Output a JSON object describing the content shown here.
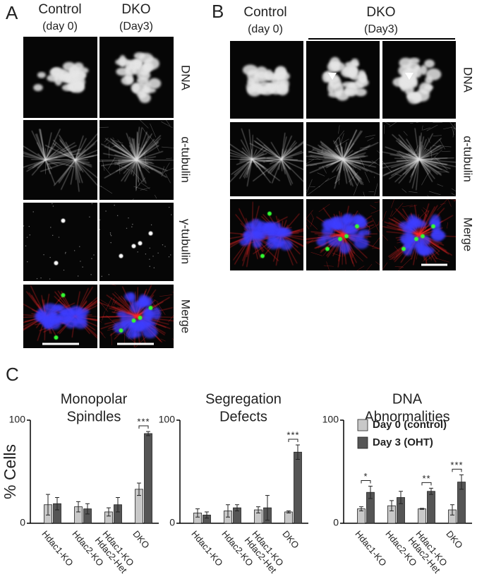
{
  "panels": {
    "A": {
      "letter": "A",
      "columns": [
        [
          "Control",
          "(day 0)"
        ],
        [
          "DKO",
          "(Day3)"
        ]
      ],
      "rows": [
        "DNA",
        "α-tubulin",
        "γ-tubulin",
        "Merge"
      ]
    },
    "B": {
      "letter": "B",
      "columns": [
        [
          "Control",
          "(day 0)"
        ],
        [
          "DKO",
          "(Day3)"
        ]
      ],
      "rows": [
        "DNA",
        "α-tubulin",
        "Merge"
      ]
    },
    "C": {
      "letter": "C"
    }
  },
  "chart_data": [
    {
      "type": "bar",
      "title": [
        "Monopolar",
        "Spindles"
      ],
      "y_label": "% Cells",
      "categories": [
        "Hdac1-KO",
        "Hdac2-KO",
        "Hdac1-KO\nHdac2-Het",
        "DKO"
      ],
      "series": [
        {
          "name": "Day 0 (control)",
          "color": "#c8c8c8",
          "values": [
            18,
            16,
            11,
            33
          ],
          "errors": [
            10,
            5,
            4,
            6
          ]
        },
        {
          "name": "Day 3 (OHT)",
          "color": "#555555",
          "values": [
            19,
            14,
            18,
            87
          ],
          "errors": [
            6,
            5,
            7,
            2
          ]
        }
      ],
      "significance": [
        null,
        null,
        null,
        "***"
      ],
      "ylim": [
        0,
        100
      ],
      "yticks": [
        0,
        100
      ]
    },
    {
      "type": "bar",
      "title": [
        "Segregation",
        "Defects"
      ],
      "categories": [
        "Hdac1-KO",
        "Hdac2-KO",
        "Hdac1-KO\nHdac2-Het",
        "DKO"
      ],
      "series": [
        {
          "name": "Day 0 (control)",
          "color": "#c8c8c8",
          "values": [
            10,
            12,
            13,
            11
          ],
          "errors": [
            4,
            6,
            3,
            1
          ]
        },
        {
          "name": "Day 3 (OHT)",
          "color": "#555555",
          "values": [
            8,
            15,
            15,
            69
          ],
          "errors": [
            3,
            3,
            12,
            7
          ]
        }
      ],
      "significance": [
        null,
        null,
        null,
        "***"
      ],
      "ylim": [
        0,
        100
      ],
      "yticks": [
        0,
        100
      ]
    },
    {
      "type": "bar",
      "title": [
        "DNA",
        "Abnormalities"
      ],
      "categories": [
        "Hdac1-KO",
        "Hdac2-KO",
        "Hdac1-KO\nHdac2-Het",
        "DKO"
      ],
      "series": [
        {
          "name": "Day 0 (control)",
          "color": "#c8c8c8",
          "values": [
            14,
            17,
            14,
            13
          ],
          "errors": [
            2,
            5,
            0.5,
            5
          ]
        },
        {
          "name": "Day 3 (OHT)",
          "color": "#555555",
          "values": [
            30,
            25,
            31,
            40
          ],
          "errors": [
            6,
            6,
            3,
            7
          ]
        }
      ],
      "significance": [
        "*",
        null,
        "**",
        "***"
      ],
      "ylim": [
        0,
        100
      ],
      "yticks": [
        0,
        100
      ],
      "legend": "upper-right"
    }
  ]
}
